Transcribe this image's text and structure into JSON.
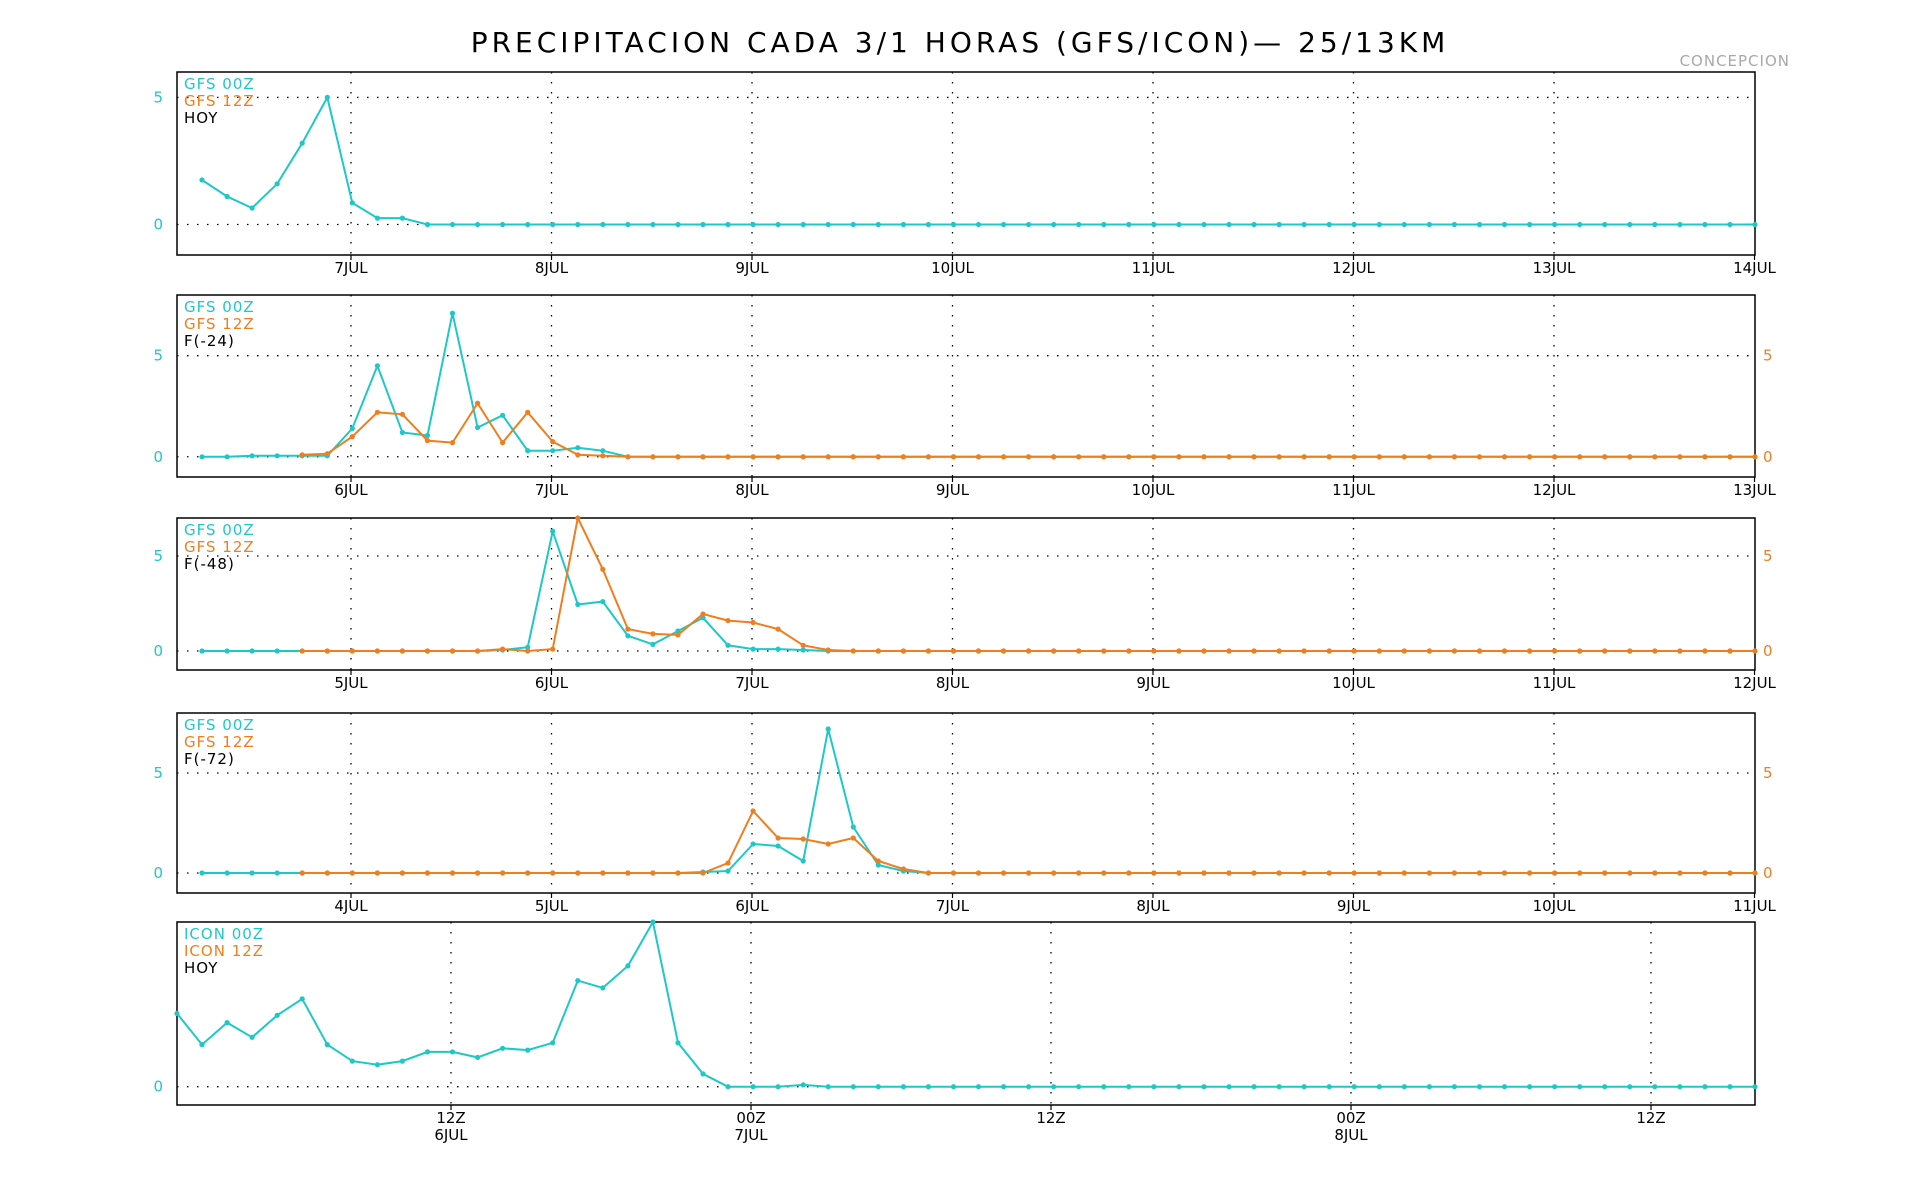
{
  "title": "PRECIPITACION CADA 3/1 HORAS (GFS/ICON)— 25/13KM",
  "location": "CONCEPCION",
  "colors": {
    "gfs00": "#1ec8c8",
    "gfs12": "#f07d1e",
    "axis": "#000000",
    "grid": "#000000",
    "text": "#000000",
    "location": "#a8a8a8"
  },
  "chart_data": [
    {
      "type": "line",
      "legend": [
        "GFS 00Z",
        "GFS 12Z",
        "HOY"
      ],
      "x_ticks": [
        "7JUL",
        "8JUL",
        "9JUL",
        "10JUL",
        "11JUL",
        "12JUL",
        "13JUL",
        "14JUL"
      ],
      "x_sub_ticks": [],
      "y_ticks": [
        "0",
        "5"
      ],
      "y_right_ticks": [],
      "ylim": [
        -1.2,
        6.0
      ],
      "xlim": [
        -8,
        55
      ],
      "grid": true,
      "series": [
        {
          "name": "GFS 00Z",
          "x_start": -7,
          "step": 1,
          "values": [
            1.75,
            1.1,
            0.65,
            1.6,
            3.2,
            5.0,
            0.85,
            0.25,
            0.25,
            0,
            0,
            0,
            0,
            0,
            0,
            0,
            0,
            0,
            0,
            0,
            0,
            0,
            0,
            0,
            0,
            0,
            0,
            0,
            0,
            0,
            0,
            0,
            0,
            0,
            0,
            0,
            0,
            0,
            0,
            0,
            0,
            0,
            0,
            0,
            0,
            0,
            0,
            0,
            0,
            0,
            0,
            0,
            0,
            0,
            0,
            0,
            0,
            0,
            0,
            0,
            0,
            0,
            0
          ]
        }
      ]
    },
    {
      "type": "line",
      "legend": [
        "GFS 00Z",
        "GFS 12Z",
        "F(-24)"
      ],
      "x_ticks": [
        "6JUL",
        "7JUL",
        "8JUL",
        "9JUL",
        "10JUL",
        "11JUL",
        "12JUL",
        "13JUL"
      ],
      "x_sub_ticks": [],
      "y_ticks": [
        "0",
        "5"
      ],
      "y_right_ticks": [
        "0",
        "5"
      ],
      "ylim": [
        -1.0,
        8.0
      ],
      "xlim": [
        -8,
        55
      ],
      "grid": true,
      "series": [
        {
          "name": "GFS 00Z",
          "x_start": -7,
          "step": 1,
          "values": [
            0,
            0,
            0.05,
            0.05,
            0.05,
            0.05,
            1.4,
            4.5,
            1.2,
            1.05,
            7.1,
            1.45,
            2.05,
            0.3,
            0.3,
            0.45,
            0.3,
            0,
            0,
            0,
            0,
            0,
            0,
            0,
            0,
            0,
            0,
            0,
            0,
            0,
            0,
            0,
            0,
            0,
            0,
            0,
            0,
            0,
            0,
            0,
            0,
            0,
            0,
            0,
            0,
            0,
            0,
            0,
            0,
            0,
            0,
            0,
            0,
            0,
            0,
            0,
            0,
            0,
            0,
            0,
            0,
            0,
            0
          ]
        },
        {
          "name": "GFS 12Z",
          "x_start": -3,
          "step": 1,
          "values": [
            0.1,
            0.15,
            1.0,
            2.2,
            2.1,
            0.8,
            0.7,
            2.65,
            0.7,
            2.2,
            0.75,
            0.1,
            0.05,
            0,
            0,
            0,
            0,
            0,
            0,
            0,
            0,
            0,
            0,
            0,
            0,
            0,
            0,
            0,
            0,
            0,
            0,
            0,
            0,
            0,
            0,
            0,
            0,
            0,
            0,
            0,
            0,
            0,
            0,
            0,
            0,
            0,
            0,
            0,
            0,
            0,
            0,
            0,
            0,
            0,
            0,
            0,
            0,
            0,
            0
          ]
        }
      ]
    },
    {
      "type": "line",
      "legend": [
        "GFS 00Z",
        "GFS 12Z",
        "F(-48)"
      ],
      "x_ticks": [
        "5JUL",
        "6JUL",
        "7JUL",
        "8JUL",
        "9JUL",
        "10JUL",
        "11JUL",
        "12JUL"
      ],
      "x_sub_ticks": [],
      "y_ticks": [
        "0",
        "5"
      ],
      "y_right_ticks": [
        "0",
        "5"
      ],
      "ylim": [
        -1.0,
        7.0
      ],
      "xlim": [
        -8,
        55
      ],
      "grid": true,
      "series": [
        {
          "name": "GFS 00Z",
          "x_start": -7,
          "step": 1,
          "values": [
            0,
            0,
            0,
            0,
            0,
            0,
            0,
            0,
            0,
            0,
            0,
            0,
            0.05,
            0.2,
            6.3,
            2.45,
            2.6,
            0.8,
            0.35,
            1.05,
            1.75,
            0.3,
            0.1,
            0.1,
            0.05,
            0,
            0,
            0,
            0,
            0,
            0,
            0,
            0,
            0,
            0,
            0,
            0,
            0,
            0,
            0,
            0,
            0,
            0,
            0,
            0,
            0,
            0,
            0,
            0,
            0,
            0,
            0,
            0,
            0,
            0,
            0,
            0,
            0,
            0,
            0,
            0,
            0,
            0
          ]
        },
        {
          "name": "GFS 12Z",
          "x_start": -3,
          "step": 1,
          "values": [
            0,
            0,
            0,
            0,
            0,
            0,
            0,
            0,
            0.1,
            0,
            0.1,
            7.0,
            4.3,
            1.15,
            0.9,
            0.85,
            1.95,
            1.6,
            1.5,
            1.15,
            0.3,
            0.05,
            0,
            0,
            0,
            0,
            0,
            0,
            0,
            0,
            0,
            0,
            0,
            0,
            0,
            0,
            0,
            0,
            0,
            0,
            0,
            0,
            0,
            0,
            0,
            0,
            0,
            0,
            0,
            0,
            0,
            0,
            0,
            0,
            0,
            0,
            0,
            0,
            0
          ]
        }
      ]
    },
    {
      "type": "line",
      "legend": [
        "GFS 00Z",
        "GFS 12Z",
        "F(-72)"
      ],
      "x_ticks": [
        "4JUL",
        "5JUL",
        "6JUL",
        "7JUL",
        "8JUL",
        "9JUL",
        "10JUL",
        "11JUL"
      ],
      "x_sub_ticks": [],
      "y_ticks": [
        "0",
        "5"
      ],
      "y_right_ticks": [
        "0",
        "5"
      ],
      "ylim": [
        -1.0,
        8.0
      ],
      "xlim": [
        -8,
        55
      ],
      "grid": true,
      "series": [
        {
          "name": "GFS 00Z",
          "x_start": -7,
          "step": 1,
          "values": [
            0,
            0,
            0,
            0,
            0,
            0,
            0,
            0,
            0,
            0,
            0,
            0,
            0,
            0,
            0,
            0,
            0,
            0,
            0,
            0,
            0.05,
            0.1,
            1.45,
            1.35,
            0.6,
            7.2,
            2.3,
            0.4,
            0.1,
            0,
            0,
            0,
            0,
            0,
            0,
            0,
            0,
            0,
            0,
            0,
            0,
            0,
            0,
            0,
            0,
            0,
            0,
            0,
            0,
            0,
            0,
            0,
            0,
            0,
            0,
            0,
            0,
            0,
            0,
            0,
            0,
            0,
            0
          ]
        },
        {
          "name": "GFS 12Z",
          "x_start": -3,
          "step": 1,
          "values": [
            0,
            0,
            0,
            0,
            0,
            0,
            0,
            0,
            0,
            0,
            0,
            0,
            0,
            0,
            0,
            0,
            0,
            0.5,
            3.1,
            1.75,
            1.7,
            1.45,
            1.75,
            0.6,
            0.2,
            0,
            0,
            0,
            0,
            0,
            0,
            0,
            0,
            0,
            0,
            0,
            0,
            0,
            0,
            0,
            0,
            0,
            0,
            0,
            0,
            0,
            0,
            0,
            0,
            0,
            0,
            0,
            0,
            0,
            0,
            0,
            0,
            0,
            0
          ]
        }
      ]
    },
    {
      "type": "line",
      "legend": [
        "ICON 00Z",
        "ICON 12Z",
        "HOY"
      ],
      "x_ticks": [
        "12Z",
        "00Z",
        "12Z",
        "00Z",
        "12Z"
      ],
      "x_sub_ticks": [
        "6JUL",
        "7JUL",
        "",
        "8JUL",
        ""
      ],
      "y_ticks": [
        "0"
      ],
      "y_right_ticks": [],
      "ylim": [
        -1.0,
        9.0
      ],
      "xlim": [
        -8,
        55
      ],
      "grid": true,
      "series": [
        {
          "name": "ICON 00Z",
          "x_start": -8,
          "step": 1,
          "values": [
            4.0,
            2.3,
            3.5,
            2.7,
            3.9,
            4.8,
            2.3,
            1.4,
            1.2,
            1.4,
            1.9,
            1.9,
            1.6,
            2.1,
            2.0,
            2.4,
            5.8,
            5.4,
            6.6,
            9.0,
            2.4,
            0.7,
            0,
            0,
            0,
            0.1,
            0,
            0,
            0,
            0,
            0,
            0,
            0,
            0,
            0,
            0,
            0,
            0,
            0,
            0,
            0,
            0,
            0,
            0,
            0,
            0,
            0,
            0,
            0,
            0,
            0,
            0,
            0,
            0,
            0,
            0,
            0,
            0,
            0,
            0,
            0,
            0,
            0,
            0
          ]
        }
      ]
    }
  ]
}
